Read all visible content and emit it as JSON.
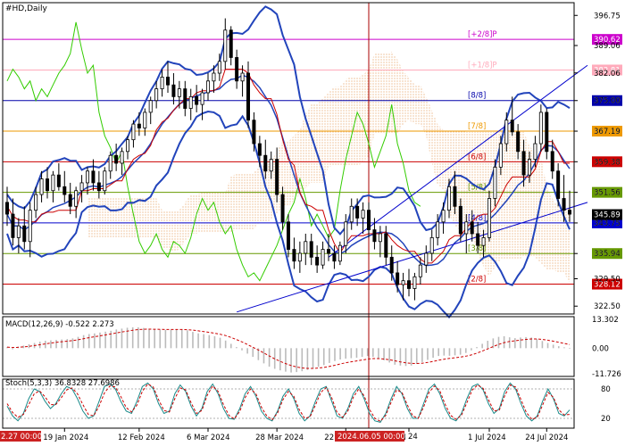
{
  "chart_data": [
    {
      "type": "candlestick",
      "symbol_label": "#HD,Daily",
      "x_tick_labels": [
        "19 Jan 2024",
        "12 Feb 2024",
        "6 Mar 2024",
        "28 Mar 2024",
        "22 Apr 2024",
        "14 M",
        "2024.06.05 00:00",
        "1 Jul 2024",
        "24 Jul 2024"
      ],
      "cursor_x_label": "2024.06.05 00:00",
      "cursor_x_partial_left": "2.27 00:00",
      "cursor_x_partial_right": "24",
      "y_tick_labels": [
        "396.75",
        "389.06",
        "382.06",
        "375.00",
        "367.19",
        "359.38",
        "351.56",
        "343.75",
        "335.94",
        "329.50",
        "322.50"
      ],
      "ylim": [
        320.5,
        400
      ],
      "price_levels": [
        {
          "value": 390.62,
          "label": "[+2/8]P",
          "color": "#cc00cc"
        },
        {
          "value": 382.81,
          "label": "[+1/8]P",
          "color": "#ffaabb"
        },
        {
          "value": 375.0,
          "label": "[8/8]",
          "color": "#0000aa"
        },
        {
          "value": 367.19,
          "label": "[7/8]",
          "color": "#ee9900"
        },
        {
          "value": 359.38,
          "label": "[6/8]",
          "color": "#cc0000"
        },
        {
          "value": 351.56,
          "label": "[5/8]",
          "color": "#669900"
        },
        {
          "value": 343.75,
          "label": "[4/8]",
          "color": "#0000cc"
        },
        {
          "value": 335.94,
          "label": "[3/8]",
          "color": "#669900"
        },
        {
          "value": 328.12,
          "label": "[2/8]",
          "color": "#cc0000"
        }
      ],
      "current_price": {
        "value": 345.89,
        "color": "#000000"
      },
      "candles": [
        {
          "o": 349,
          "h": 353,
          "l": 343,
          "c": 346
        },
        {
          "o": 346,
          "h": 350,
          "l": 338,
          "c": 340
        },
        {
          "o": 340,
          "h": 345,
          "l": 336,
          "c": 343
        },
        {
          "o": 343,
          "h": 348,
          "l": 337,
          "c": 339
        },
        {
          "o": 339,
          "h": 349,
          "l": 335,
          "c": 347
        },
        {
          "o": 347,
          "h": 353,
          "l": 345,
          "c": 351
        },
        {
          "o": 351,
          "h": 357,
          "l": 349,
          "c": 355
        },
        {
          "o": 355,
          "h": 358,
          "l": 350,
          "c": 352
        },
        {
          "o": 352,
          "h": 357,
          "l": 349,
          "c": 356
        },
        {
          "o": 356,
          "h": 359,
          "l": 352,
          "c": 353
        },
        {
          "o": 353,
          "h": 357,
          "l": 349,
          "c": 351
        },
        {
          "o": 351,
          "h": 354,
          "l": 346,
          "c": 348
        },
        {
          "o": 348,
          "h": 353,
          "l": 345,
          "c": 352
        },
        {
          "o": 352,
          "h": 356,
          "l": 349,
          "c": 354
        },
        {
          "o": 354,
          "h": 358,
          "l": 351,
          "c": 357
        },
        {
          "o": 357,
          "h": 360,
          "l": 352,
          "c": 354
        },
        {
          "o": 354,
          "h": 357,
          "l": 350,
          "c": 352
        },
        {
          "o": 352,
          "h": 358,
          "l": 351,
          "c": 357
        },
        {
          "o": 357,
          "h": 362,
          "l": 355,
          "c": 361
        },
        {
          "o": 361,
          "h": 364,
          "l": 357,
          "c": 359
        },
        {
          "o": 359,
          "h": 363,
          "l": 356,
          "c": 362
        },
        {
          "o": 362,
          "h": 366,
          "l": 360,
          "c": 365
        },
        {
          "o": 365,
          "h": 370,
          "l": 363,
          "c": 369
        },
        {
          "o": 369,
          "h": 372,
          "l": 366,
          "c": 368
        },
        {
          "o": 368,
          "h": 373,
          "l": 366,
          "c": 372
        },
        {
          "o": 372,
          "h": 376,
          "l": 369,
          "c": 375
        },
        {
          "o": 375,
          "h": 380,
          "l": 373,
          "c": 378
        },
        {
          "o": 378,
          "h": 383,
          "l": 376,
          "c": 381
        },
        {
          "o": 381,
          "h": 385,
          "l": 377,
          "c": 379
        },
        {
          "o": 379,
          "h": 382,
          "l": 374,
          "c": 376
        },
        {
          "o": 376,
          "h": 380,
          "l": 373,
          "c": 378
        },
        {
          "o": 378,
          "h": 380,
          "l": 371,
          "c": 373
        },
        {
          "o": 373,
          "h": 378,
          "l": 370,
          "c": 376
        },
        {
          "o": 376,
          "h": 379,
          "l": 372,
          "c": 374
        },
        {
          "o": 374,
          "h": 378,
          "l": 370,
          "c": 377
        },
        {
          "o": 377,
          "h": 382,
          "l": 375,
          "c": 380
        },
        {
          "o": 380,
          "h": 384,
          "l": 377,
          "c": 382
        },
        {
          "o": 382,
          "h": 387,
          "l": 380,
          "c": 385
        },
        {
          "o": 385,
          "h": 396,
          "l": 383,
          "c": 393
        },
        {
          "o": 393,
          "h": 394,
          "l": 384,
          "c": 386
        },
        {
          "o": 386,
          "h": 388,
          "l": 378,
          "c": 380
        },
        {
          "o": 380,
          "h": 384,
          "l": 376,
          "c": 382
        },
        {
          "o": 382,
          "h": 385,
          "l": 368,
          "c": 370
        },
        {
          "o": 370,
          "h": 372,
          "l": 362,
          "c": 364
        },
        {
          "o": 364,
          "h": 366,
          "l": 358,
          "c": 361
        },
        {
          "o": 361,
          "h": 365,
          "l": 355,
          "c": 357
        },
        {
          "o": 357,
          "h": 362,
          "l": 355,
          "c": 360
        },
        {
          "o": 360,
          "h": 363,
          "l": 349,
          "c": 351
        },
        {
          "o": 351,
          "h": 353,
          "l": 342,
          "c": 344
        },
        {
          "o": 344,
          "h": 346,
          "l": 335,
          "c": 337
        },
        {
          "o": 337,
          "h": 340,
          "l": 332,
          "c": 334
        },
        {
          "o": 334,
          "h": 339,
          "l": 331,
          "c": 336
        },
        {
          "o": 336,
          "h": 341,
          "l": 333,
          "c": 339
        },
        {
          "o": 339,
          "h": 341,
          "l": 333,
          "c": 335
        },
        {
          "o": 335,
          "h": 338,
          "l": 331,
          "c": 333
        },
        {
          "o": 333,
          "h": 339,
          "l": 332,
          "c": 337
        },
        {
          "o": 337,
          "h": 341,
          "l": 334,
          "c": 336
        },
        {
          "o": 336,
          "h": 338,
          "l": 332,
          "c": 334
        },
        {
          "o": 334,
          "h": 339,
          "l": 333,
          "c": 338
        },
        {
          "o": 338,
          "h": 346,
          "l": 336,
          "c": 344
        },
        {
          "o": 344,
          "h": 350,
          "l": 342,
          "c": 348
        },
        {
          "o": 348,
          "h": 350,
          "l": 343,
          "c": 345
        },
        {
          "o": 345,
          "h": 349,
          "l": 341,
          "c": 347
        },
        {
          "o": 347,
          "h": 349,
          "l": 340,
          "c": 342
        },
        {
          "o": 342,
          "h": 345,
          "l": 337,
          "c": 339
        },
        {
          "o": 339,
          "h": 343,
          "l": 335,
          "c": 341
        },
        {
          "o": 341,
          "h": 343,
          "l": 333,
          "c": 335
        },
        {
          "o": 335,
          "h": 338,
          "l": 329,
          "c": 331
        },
        {
          "o": 331,
          "h": 334,
          "l": 326,
          "c": 328
        },
        {
          "o": 328,
          "h": 331,
          "l": 324,
          "c": 329
        },
        {
          "o": 329,
          "h": 332,
          "l": 325,
          "c": 327
        },
        {
          "o": 327,
          "h": 331,
          "l": 324,
          "c": 330
        },
        {
          "o": 330,
          "h": 335,
          "l": 328,
          "c": 333
        },
        {
          "o": 333,
          "h": 338,
          "l": 331,
          "c": 336
        },
        {
          "o": 336,
          "h": 342,
          "l": 334,
          "c": 340
        },
        {
          "o": 340,
          "h": 346,
          "l": 338,
          "c": 344
        },
        {
          "o": 344,
          "h": 349,
          "l": 341,
          "c": 347
        },
        {
          "o": 347,
          "h": 355,
          "l": 345,
          "c": 353
        },
        {
          "o": 353,
          "h": 357,
          "l": 346,
          "c": 348
        },
        {
          "o": 348,
          "h": 350,
          "l": 339,
          "c": 341
        },
        {
          "o": 341,
          "h": 346,
          "l": 336,
          "c": 344
        },
        {
          "o": 344,
          "h": 347,
          "l": 339,
          "c": 341
        },
        {
          "o": 341,
          "h": 344,
          "l": 336,
          "c": 338
        },
        {
          "o": 338,
          "h": 342,
          "l": 335,
          "c": 340
        },
        {
          "o": 340,
          "h": 352,
          "l": 339,
          "c": 350
        },
        {
          "o": 350,
          "h": 360,
          "l": 348,
          "c": 358
        },
        {
          "o": 358,
          "h": 366,
          "l": 356,
          "c": 364
        },
        {
          "o": 364,
          "h": 372,
          "l": 362,
          "c": 370
        },
        {
          "o": 370,
          "h": 376,
          "l": 366,
          "c": 367
        },
        {
          "o": 367,
          "h": 369,
          "l": 360,
          "c": 362
        },
        {
          "o": 362,
          "h": 365,
          "l": 353,
          "c": 356
        },
        {
          "o": 356,
          "h": 362,
          "l": 354,
          "c": 360
        },
        {
          "o": 360,
          "h": 366,
          "l": 358,
          "c": 364
        },
        {
          "o": 364,
          "h": 374,
          "l": 362,
          "c": 372
        },
        {
          "o": 372,
          "h": 373,
          "l": 360,
          "c": 362
        },
        {
          "o": 362,
          "h": 365,
          "l": 355,
          "c": 357
        },
        {
          "o": 357,
          "h": 359,
          "l": 348,
          "c": 350
        },
        {
          "o": 350,
          "h": 356,
          "l": 344,
          "c": 347
        },
        {
          "o": 347,
          "h": 352,
          "l": 344,
          "c": 346
        }
      ],
      "overlays": [
        {
          "name": "bollinger_upper",
          "color": "#2244bb"
        },
        {
          "name": "bollinger_middle",
          "color": "#2244bb"
        },
        {
          "name": "bollinger_lower",
          "color": "#2244bb"
        },
        {
          "name": "tenkan",
          "color": "#cc0000"
        },
        {
          "name": "chikou",
          "color": "#33cc00"
        },
        {
          "name": "ichimoku_cloud",
          "color": "#e8a060"
        },
        {
          "name": "channel_upper",
          "color": "#0000cc"
        },
        {
          "name": "channel_lower",
          "color": "#0000cc"
        }
      ]
    },
    {
      "type": "histogram",
      "label": "MACD(12,26,9) -0.522 2.273",
      "y_tick_labels": [
        "13.302",
        "0.00",
        "-11.726"
      ],
      "ylim": [
        -13,
        14.5
      ],
      "histogram": [
        0.5,
        -0.5,
        0.8,
        1.2,
        1.8,
        2.4,
        3.0,
        3.4,
        3.6,
        3.8,
        4.0,
        4.2,
        4.5,
        5.2,
        6.0,
        6.5,
        6.8,
        7.2,
        7.6,
        8.0,
        8.6,
        9.0,
        9.4,
        9.6,
        9.6,
        9.3,
        8.9,
        8.6,
        8.5,
        8.4,
        8.5,
        8.6,
        8.6,
        8.2,
        7.5,
        6.8,
        6.5,
        6.0,
        5.5,
        4.8,
        3.5,
        2.0,
        0.5,
        -1.0,
        -2.5,
        -4.0,
        -5.5,
        -7.0,
        -8.5,
        -9.5,
        -10.2,
        -10.8,
        -11.2,
        -11.0,
        -10.6,
        -10.0,
        -9.4,
        -8.6,
        -7.8,
        -6.8,
        -5.9,
        -5.2,
        -4.8,
        -4.6,
        -4.4,
        -4.0,
        -3.6,
        -4.0,
        -4.8,
        -5.6,
        -6.6,
        -7.6,
        -8.0,
        -8.2,
        -8.0,
        -7.2,
        -6.4,
        -5.4,
        -4.4,
        -3.6,
        -3.4,
        -3.5,
        -3.3,
        -3.0,
        -2.2,
        -1.0,
        0.5,
        2.0,
        3.4,
        4.5,
        5.2,
        5.5,
        5.0,
        4.6,
        4.9,
        5.1,
        4.9,
        4.2,
        3.3,
        2.4,
        1.6,
        0.9,
        0.4,
        -0.3
      ],
      "signal_color": "#cc0000",
      "hist_color": "#bbbbbb"
    },
    {
      "type": "line",
      "label": "Stoch(5,3,3) 36.8328 27.6986",
      "y_tick_labels": [
        "80",
        "20"
      ],
      "ylim": [
        0,
        100
      ],
      "series": [
        {
          "color": "#1a8a8a",
          "values": [
            45,
            25,
            15,
            30,
            60,
            80,
            75,
            55,
            40,
            50,
            70,
            85,
            80,
            60,
            35,
            20,
            25,
            55,
            85,
            90,
            80,
            55,
            35,
            30,
            55,
            85,
            92,
            80,
            50,
            30,
            35,
            70,
            88,
            75,
            45,
            25,
            40,
            75,
            90,
            70,
            40,
            20,
            18,
            40,
            70,
            85,
            65,
            35,
            20,
            15,
            35,
            65,
            80,
            60,
            30,
            15,
            25,
            55,
            80,
            85,
            55,
            25,
            20,
            40,
            70,
            85,
            60,
            30,
            15,
            12,
            30,
            60,
            85,
            70,
            40,
            20,
            20,
            50,
            80,
            90,
            70,
            40,
            20,
            15,
            30,
            60,
            85,
            90,
            78,
            50,
            30,
            40,
            75,
            92,
            80,
            50,
            25,
            15,
            25,
            55,
            80,
            60,
            30,
            25,
            37
          ]
        },
        {
          "color": "#cc0000",
          "dashed": true,
          "values": [
            50,
            32,
            22,
            28,
            48,
            70,
            76,
            64,
            48,
            48,
            62,
            78,
            82,
            70,
            48,
            28,
            25,
            45,
            72,
            86,
            84,
            65,
            42,
            33,
            47,
            75,
            90,
            84,
            58,
            36,
            33,
            60,
            82,
            78,
            52,
            30,
            36,
            67,
            86,
            75,
            48,
            26,
            19,
            34,
            62,
            80,
            70,
            43,
            25,
            17,
            31,
            58,
            75,
            65,
            38,
            20,
            23,
            47,
            73,
            83,
            62,
            32,
            22,
            35,
            63,
            80,
            66,
            38,
            20,
            14,
            26,
            53,
            78,
            73,
            47,
            25,
            20,
            43,
            73,
            86,
            76,
            48,
            26,
            18,
            26,
            52,
            78,
            88,
            81,
            58,
            35,
            37,
            66,
            88,
            84,
            58,
            32,
            18,
            22,
            47,
            73,
            63,
            37,
            27,
            28
          ]
        }
      ]
    }
  ]
}
